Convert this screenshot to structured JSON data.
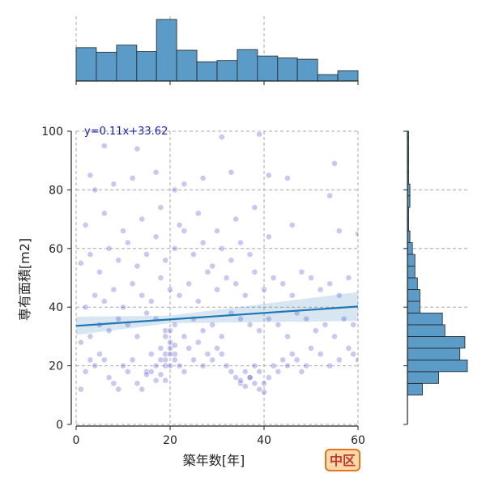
{
  "chart_data": {
    "type": "scatter",
    "title": "",
    "xlabel": "築年数[年]",
    "ylabel": "専有面積[m2]",
    "xlim": [
      0,
      60
    ],
    "ylim": [
      0,
      100
    ],
    "xticks": [
      0,
      20,
      40,
      60
    ],
    "yticks": [
      0,
      20,
      40,
      60,
      80,
      100
    ],
    "grid": true,
    "point_color": "#3a3acc",
    "regression": {
      "equation": "y=0.11x+33.62",
      "slope": 0.11,
      "intercept": 33.62,
      "color": "#1f77b4",
      "band_color": "#1f77b4"
    },
    "badge": {
      "label": "中区",
      "text_color": "#c0392b",
      "fill": "#fcd9a8",
      "border": "#e8731a"
    },
    "x_histogram": {
      "bin_edges": [
        0,
        4.3,
        8.6,
        12.9,
        17.1,
        21.4,
        25.7,
        30,
        34.3,
        38.6,
        42.9,
        47.1,
        51.4,
        55.7,
        60
      ],
      "counts": [
        52,
        45,
        56,
        46,
        96,
        48,
        30,
        32,
        49,
        39,
        36,
        34,
        10,
        16,
        10
      ],
      "color": "#5a9bc8"
    },
    "y_histogram": {
      "bin_edges": [
        10,
        14,
        18,
        22,
        26,
        30,
        34,
        38,
        42,
        46,
        50,
        54,
        58,
        62,
        66,
        70,
        74,
        78,
        82,
        86,
        90,
        94,
        98,
        100
      ],
      "counts": [
        12,
        25,
        48,
        42,
        46,
        30,
        28,
        10,
        10,
        8,
        6,
        6,
        4,
        2,
        1,
        1,
        2,
        2,
        1,
        1,
        1,
        1,
        1
      ],
      "color": "#5a9bc8"
    },
    "points": [
      [
        1,
        12
      ],
      [
        2,
        18
      ],
      [
        3,
        22
      ],
      [
        4,
        20
      ],
      [
        5,
        24
      ],
      [
        6,
        22
      ],
      [
        7,
        16
      ],
      [
        8,
        14
      ],
      [
        9,
        12
      ],
      [
        10,
        20
      ],
      [
        11,
        18
      ],
      [
        12,
        22
      ],
      [
        13,
        14
      ],
      [
        14,
        12
      ],
      [
        15,
        18
      ],
      [
        16,
        24
      ],
      [
        17,
        20
      ],
      [
        18,
        26
      ],
      [
        19,
        22
      ],
      [
        20,
        28
      ],
      [
        21,
        24
      ],
      [
        22,
        20
      ],
      [
        23,
        18
      ],
      [
        24,
        26
      ],
      [
        25,
        22
      ],
      [
        26,
        28
      ],
      [
        27,
        20
      ],
      [
        28,
        24
      ],
      [
        29,
        22
      ],
      [
        30,
        26
      ],
      [
        31,
        24
      ],
      [
        32,
        20
      ],
      [
        33,
        18
      ],
      [
        34,
        16
      ],
      [
        35,
        14
      ],
      [
        36,
        18
      ],
      [
        37,
        16
      ],
      [
        38,
        20
      ],
      [
        39,
        18
      ],
      [
        40,
        14
      ],
      [
        41,
        16
      ],
      [
        42,
        20
      ],
      [
        43,
        18
      ],
      [
        44,
        22
      ],
      [
        45,
        20
      ],
      [
        46,
        24
      ],
      [
        47,
        22
      ],
      [
        48,
        18
      ],
      [
        49,
        20
      ],
      [
        50,
        26
      ],
      [
        52,
        24
      ],
      [
        54,
        20
      ],
      [
        56,
        22
      ],
      [
        58,
        26
      ],
      [
        59,
        24
      ],
      [
        60,
        22
      ],
      [
        1,
        28
      ],
      [
        3,
        30
      ],
      [
        5,
        34
      ],
      [
        7,
        32
      ],
      [
        9,
        36
      ],
      [
        11,
        34
      ],
      [
        13,
        30
      ],
      [
        15,
        38
      ],
      [
        17,
        36
      ],
      [
        19,
        32
      ],
      [
        21,
        34
      ],
      [
        23,
        30
      ],
      [
        25,
        36
      ],
      [
        27,
        32
      ],
      [
        29,
        34
      ],
      [
        31,
        30
      ],
      [
        33,
        38
      ],
      [
        35,
        36
      ],
      [
        37,
        34
      ],
      [
        39,
        32
      ],
      [
        41,
        36
      ],
      [
        43,
        34
      ],
      [
        45,
        30
      ],
      [
        47,
        38
      ],
      [
        49,
        36
      ],
      [
        51,
        32
      ],
      [
        53,
        34
      ],
      [
        55,
        30
      ],
      [
        57,
        36
      ],
      [
        59,
        34
      ],
      [
        2,
        40
      ],
      [
        4,
        44
      ],
      [
        6,
        42
      ],
      [
        8,
        46
      ],
      [
        10,
        40
      ],
      [
        12,
        48
      ],
      [
        14,
        44
      ],
      [
        16,
        42
      ],
      [
        18,
        50
      ],
      [
        20,
        46
      ],
      [
        22,
        44
      ],
      [
        24,
        48
      ],
      [
        26,
        42
      ],
      [
        28,
        52
      ],
      [
        30,
        46
      ],
      [
        32,
        50
      ],
      [
        34,
        48
      ],
      [
        36,
        44
      ],
      [
        38,
        52
      ],
      [
        40,
        46
      ],
      [
        42,
        50
      ],
      [
        44,
        48
      ],
      [
        46,
        44
      ],
      [
        48,
        52
      ],
      [
        50,
        50
      ],
      [
        52,
        46
      ],
      [
        54,
        48
      ],
      [
        56,
        44
      ],
      [
        58,
        50
      ],
      [
        1,
        55
      ],
      [
        3,
        58
      ],
      [
        5,
        52
      ],
      [
        7,
        60
      ],
      [
        9,
        56
      ],
      [
        11,
        62
      ],
      [
        13,
        54
      ],
      [
        15,
        58
      ],
      [
        17,
        64
      ],
      [
        19,
        56
      ],
      [
        21,
        60
      ],
      [
        23,
        66
      ],
      [
        25,
        58
      ],
      [
        27,
        62
      ],
      [
        29,
        54
      ],
      [
        31,
        60
      ],
      [
        33,
        56
      ],
      [
        35,
        62
      ],
      [
        37,
        58
      ],
      [
        41,
        64
      ],
      [
        2,
        68
      ],
      [
        6,
        72
      ],
      [
        10,
        66
      ],
      [
        14,
        70
      ],
      [
        18,
        74
      ],
      [
        22,
        68
      ],
      [
        26,
        72
      ],
      [
        30,
        66
      ],
      [
        34,
        70
      ],
      [
        38,
        74
      ],
      [
        46,
        68
      ],
      [
        56,
        66
      ],
      [
        60,
        65
      ],
      [
        3,
        85
      ],
      [
        4,
        80
      ],
      [
        8,
        82
      ],
      [
        12,
        84
      ],
      [
        17,
        86
      ],
      [
        21,
        80
      ],
      [
        23,
        82
      ],
      [
        27,
        84
      ],
      [
        33,
        86
      ],
      [
        41,
        85
      ],
      [
        45,
        84
      ],
      [
        55,
        89
      ],
      [
        54,
        78
      ],
      [
        6,
        95
      ],
      [
        13,
        94
      ],
      [
        31,
        98
      ],
      [
        39,
        99
      ],
      [
        15,
        17
      ],
      [
        16,
        18
      ],
      [
        17,
        15
      ],
      [
        18,
        17
      ],
      [
        19,
        15
      ],
      [
        35,
        15
      ],
      [
        36,
        13
      ],
      [
        37,
        16
      ],
      [
        38,
        14
      ],
      [
        39,
        12
      ],
      [
        40,
        11
      ],
      [
        19,
        24
      ],
      [
        20,
        26
      ],
      [
        21,
        22
      ],
      [
        20,
        20
      ],
      [
        19,
        20
      ],
      [
        18,
        22
      ],
      [
        20,
        24
      ],
      [
        21,
        27
      ],
      [
        19,
        30
      ],
      [
        20,
        32
      ]
    ]
  }
}
